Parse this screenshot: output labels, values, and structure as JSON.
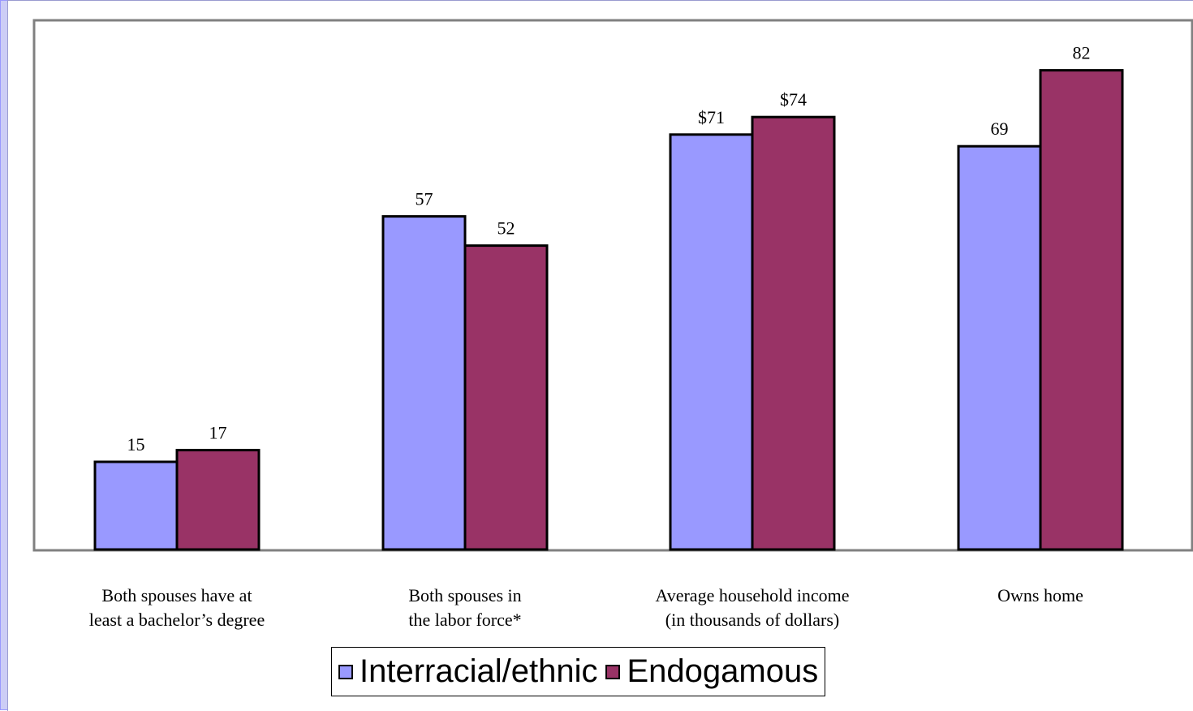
{
  "chart_data": {
    "type": "bar",
    "categories": [
      [
        "Both spouses have at",
        "least a bachelor’s degree"
      ],
      [
        "Both spouses in",
        "the labor force*"
      ],
      [
        "Average household income",
        "(in thousands of dollars)"
      ],
      [
        "Owns home"
      ]
    ],
    "series": [
      {
        "name": "Interracial/ethnic",
        "color": "#9999ff",
        "values": [
          15,
          57,
          71,
          69
        ],
        "labels": [
          "15",
          "57",
          "$71",
          "69"
        ]
      },
      {
        "name": "Endogamous",
        "color": "#993366",
        "values": [
          17,
          52,
          74,
          82
        ],
        "labels": [
          "17",
          "52",
          "$74",
          "82"
        ]
      }
    ],
    "ylim": [
      0,
      90
    ],
    "grid": false,
    "legend_position": "bottom"
  }
}
